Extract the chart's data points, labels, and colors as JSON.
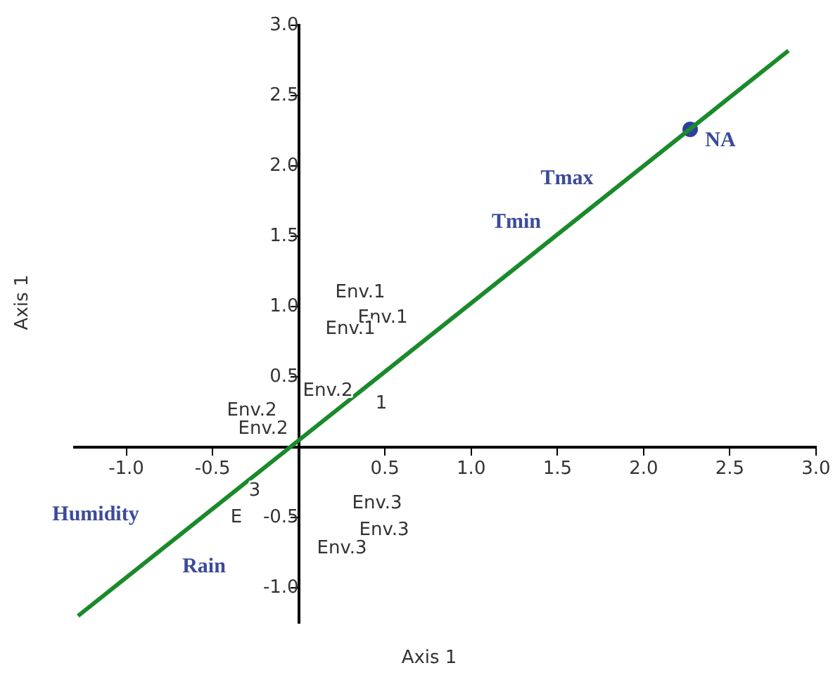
{
  "chart_data": {
    "type": "scatter",
    "xlabel": "Axis 1",
    "ylabel": "Axis 1",
    "xlim": [
      -1.3,
      3.0
    ],
    "ylim": [
      -1.25,
      3.0
    ],
    "xticks": [
      {
        "value": -1,
        "label": "-1.0"
      },
      {
        "value": -0.5,
        "label": "-0.5"
      },
      {
        "value": 0,
        "label": null
      },
      {
        "value": 0.5,
        "label": "0.5"
      },
      {
        "value": 1,
        "label": "1.0"
      },
      {
        "value": 1.5,
        "label": "1.5"
      },
      {
        "value": 2,
        "label": "2.0"
      },
      {
        "value": 2.5,
        "label": "2.5"
      },
      {
        "value": 3,
        "label": "3.0"
      }
    ],
    "yticks": [
      {
        "value": -1,
        "label": "-1.0"
      },
      {
        "value": -0.5,
        "label": "-0.5"
      },
      {
        "value": 0,
        "label": null
      },
      {
        "value": 0.5,
        "label": "0.5"
      },
      {
        "value": 1,
        "label": "1.0"
      },
      {
        "value": 1.5,
        "label": "1.5"
      },
      {
        "value": 2,
        "label": "2.0"
      },
      {
        "value": 2.5,
        "label": "2.5"
      },
      {
        "value": 3,
        "label": "3.0"
      }
    ],
    "grid": false,
    "legend": false,
    "series": [
      {
        "type": "line",
        "color": "#1a8a2a",
        "x": [
          -1.28,
          2.84
        ],
        "values": [
          -1.2,
          2.82
        ],
        "marker": "none",
        "line_style": "solid"
      },
      {
        "color": "#2e3f9e",
        "x": [
          2.27
        ],
        "values": [
          2.26
        ],
        "marker": "circle"
      }
    ],
    "annotations": [
      "Humidity",
      "Rain",
      "Tmin",
      "Tmax",
      "NA",
      "Env.1",
      "Env.1",
      "Env.1",
      "Env.2",
      "Env.2",
      "Env.2",
      "1",
      "3",
      "E",
      "Env.3",
      "Env.3",
      "Env.3"
    ]
  }
}
